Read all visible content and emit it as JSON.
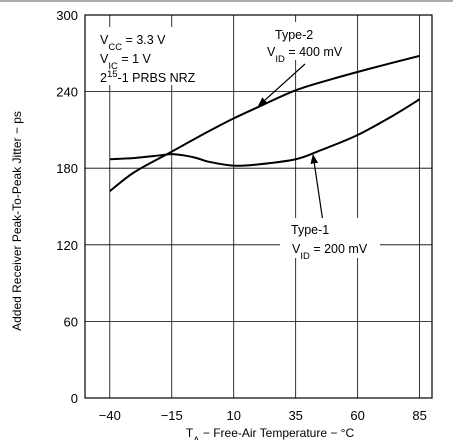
{
  "chart_data": {
    "type": "line",
    "xlabel": {
      "prefix": "T",
      "sub": "A",
      "rest": " − Free-Air Temperature −  °C"
    },
    "ylabel": "Added Receiver Peak-To-Peak Jitter − ps",
    "xlim": [
      -50,
      90
    ],
    "ylim": [
      0,
      300
    ],
    "xticks": [
      "−40",
      "−15",
      "10",
      "35",
      "60",
      "85"
    ],
    "xtick_values": [
      -40,
      -15,
      10,
      35,
      60,
      85
    ],
    "yticks": [
      "0",
      "60",
      "120",
      "180",
      "240",
      "300"
    ],
    "ytick_values": [
      0,
      60,
      120,
      180,
      240,
      300
    ],
    "grid": true,
    "conditions": [
      {
        "parts": [
          {
            "t": "V"
          },
          {
            "t": "CC",
            "sub": true
          },
          {
            "t": " = 3.3 V"
          }
        ]
      },
      {
        "parts": [
          {
            "t": "V"
          },
          {
            "t": "IC",
            "sub": true
          },
          {
            "t": " = 1 V"
          }
        ]
      },
      {
        "parts": [
          {
            "t": "2"
          },
          {
            "t": "15",
            "sup": true
          },
          {
            "t": "-1 PRBS NRZ"
          }
        ]
      }
    ],
    "series": [
      {
        "name": "Type-2",
        "label_line2": {
          "parts": [
            {
              "t": "V"
            },
            {
              "t": "ID",
              "sub": true
            },
            {
              "t": " = 400 mV"
            }
          ]
        },
        "x": [
          -40,
          -30,
          -15,
          0,
          10,
          20,
          35,
          50,
          65,
          85
        ],
        "y": [
          162,
          177,
          193,
          209,
          219,
          228,
          241,
          250,
          258,
          268
        ]
      },
      {
        "name": "Type-1",
        "label_line2": {
          "parts": [
            {
              "t": "V"
            },
            {
              "t": "ID",
              "sub": true
            },
            {
              "t": " = 200 mV"
            }
          ]
        },
        "x": [
          -40,
          -30,
          -20,
          -15,
          -10,
          -5,
          0,
          10,
          20,
          35,
          45,
          60,
          75,
          85
        ],
        "y": [
          187,
          188,
          190,
          191,
          190,
          188,
          185,
          182,
          183,
          187,
          194,
          206,
          222,
          234
        ]
      }
    ]
  }
}
